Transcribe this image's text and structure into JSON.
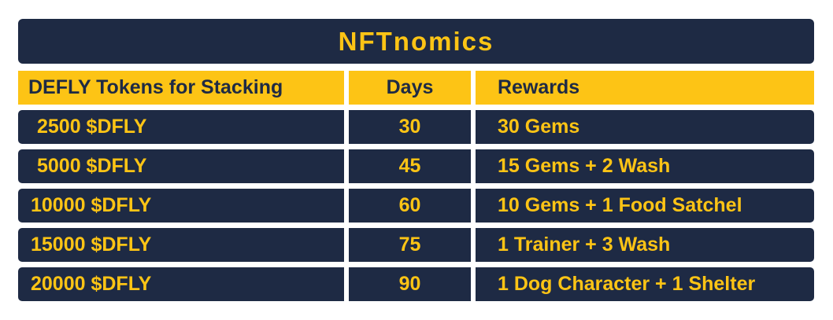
{
  "title": "NFTnomics",
  "colors": {
    "navy": "#1e2a44",
    "gold": "#fdc415"
  },
  "table": {
    "headers": [
      "DEFLY Tokens for Stacking",
      "Days",
      "Rewards"
    ],
    "rows": [
      {
        "tokens": "2500 $DFLY",
        "days": "30",
        "rewards": "30 Gems"
      },
      {
        "tokens": "5000 $DFLY",
        "days": "45",
        "rewards": "15 Gems + 2 Wash"
      },
      {
        "tokens": "10000 $DFLY",
        "days": "60",
        "rewards": "10 Gems + 1 Food Satchel"
      },
      {
        "tokens": "15000 $DFLY",
        "days": "75",
        "rewards": "1 Trainer + 3 Wash"
      },
      {
        "tokens": "20000 $DFLY",
        "days": "90",
        "rewards": "1 Dog Character + 1 Shelter"
      }
    ]
  }
}
